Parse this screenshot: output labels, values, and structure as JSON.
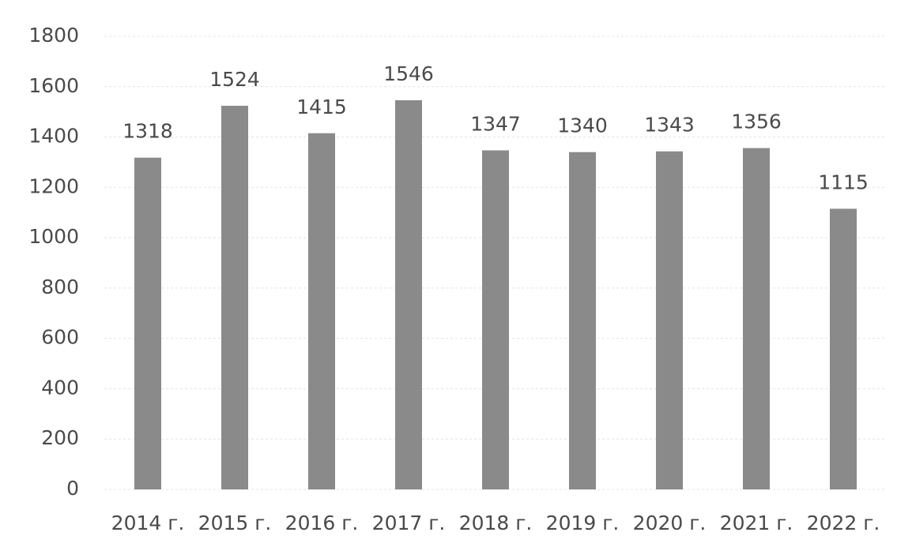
{
  "chart_data": {
    "type": "bar",
    "categories": [
      "2014 г.",
      "2015 г.",
      "2016 г.",
      "2017 г.",
      "2018 г.",
      "2019 г.",
      "2020 г.",
      "2021 г.",
      "2022 г."
    ],
    "values": [
      1318,
      1524,
      1415,
      1546,
      1347,
      1340,
      1343,
      1356,
      1115
    ],
    "color": "#8a8a8a",
    "ylim": [
      0,
      1800
    ],
    "yticks": [
      0,
      200,
      400,
      600,
      800,
      1000,
      1200,
      1400,
      1600,
      1800
    ],
    "grid": true
  }
}
